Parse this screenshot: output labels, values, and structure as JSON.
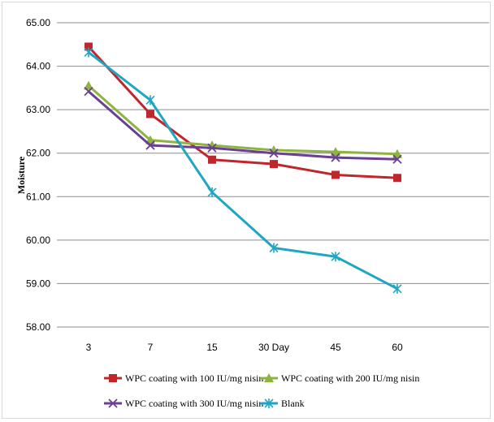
{
  "chart_data": {
    "type": "line",
    "title": "",
    "xlabel": "",
    "ylabel": "Moisture",
    "categories": [
      "3",
      "7",
      "15",
      "30 Day",
      "45",
      "60"
    ],
    "ylim": [
      58,
      65
    ],
    "yticks": [
      "58.00",
      "59.00",
      "60.00",
      "61.00",
      "62.00",
      "63.00",
      "64.00",
      "65.00"
    ],
    "grid": true,
    "legend_position": "bottom",
    "series": [
      {
        "name": "WPC coating with 100 IU/mg nisin",
        "color": "#c0262b",
        "marker": "square",
        "values": [
          64.45,
          62.9,
          61.85,
          61.75,
          61.5,
          61.43
        ]
      },
      {
        "name": "WPC coating with 200 IU/mg nisin",
        "color": "#8db43e",
        "marker": "triangle",
        "values": [
          63.55,
          62.3,
          62.18,
          62.07,
          62.03,
          61.98
        ]
      },
      {
        "name": "WPC coating with 300 IU/mg nisin",
        "color": "#6a3f94",
        "marker": "x",
        "values": [
          63.42,
          62.18,
          62.12,
          62.0,
          61.9,
          61.86
        ]
      },
      {
        "name": "Blank",
        "color": "#1fa6c4",
        "marker": "star",
        "values": [
          64.32,
          63.22,
          61.1,
          59.82,
          59.62,
          58.88
        ]
      }
    ]
  }
}
